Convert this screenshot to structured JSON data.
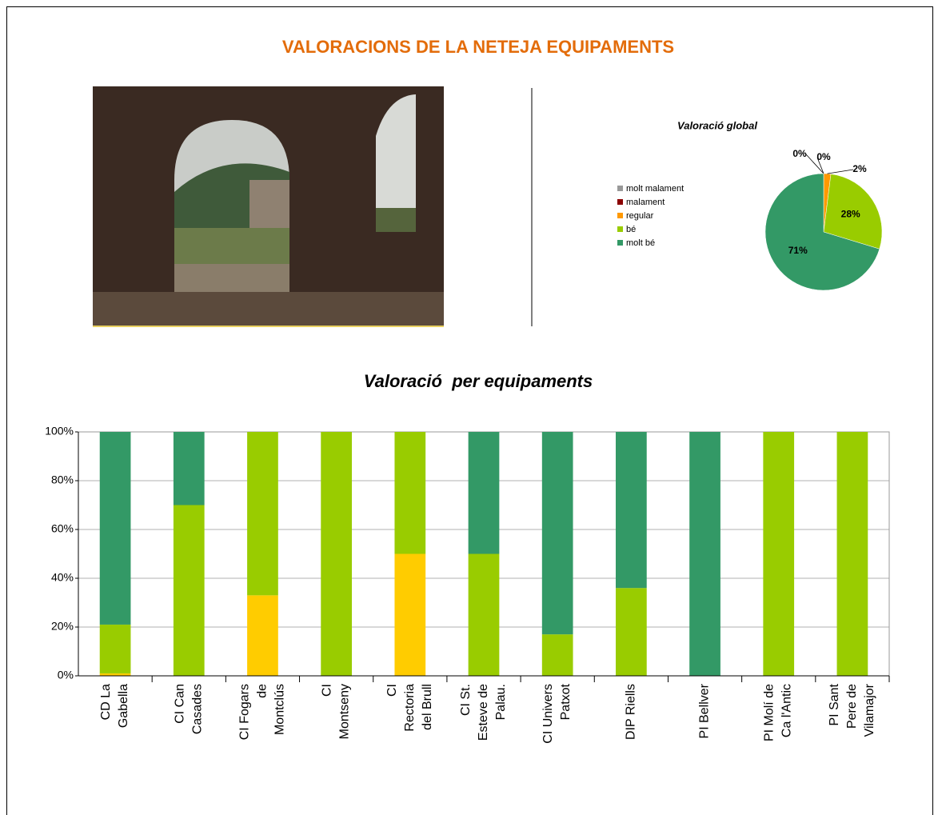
{
  "header": {
    "title": "VALORACIONS DE LA NETEJA EQUIPAMENTS"
  },
  "chart_data": [
    {
      "type": "pie",
      "title": "Valoració global",
      "categories": [
        "molt malament",
        "malament",
        "regular",
        "bé",
        "molt bé"
      ],
      "values": [
        0,
        0,
        2,
        28,
        71
      ],
      "value_labels": [
        "0%",
        "0%",
        "2%",
        "28%",
        "71%"
      ],
      "colors": [
        "#999999",
        "#8b0000",
        "#ff9900",
        "#99cc00",
        "#339966"
      ],
      "legend": "left"
    },
    {
      "type": "stacked_bar",
      "title": "Valoració  per equipaments",
      "categories": [
        "CD La Gabella",
        "CI Can Casades",
        "CI Fogars de Montclús",
        "CI Montseny",
        "CI Rectoria del Brull",
        "CI St. Esteve de Palau.",
        "CI Univers Patxot",
        "DIP Riells",
        "PI Bellver",
        "PI Molí de Ca l'Antic",
        "PI Sant Pere de Vilamajor"
      ],
      "series": [
        {
          "color": "#ffcc00",
          "values": [
            1,
            0,
            33,
            0,
            50,
            0,
            0,
            0,
            0,
            0,
            0
          ]
        },
        {
          "color": "#99cc00",
          "values": [
            20,
            70,
            67,
            100,
            50,
            50,
            17,
            36,
            0,
            100,
            100
          ]
        },
        {
          "color": "#339966",
          "values": [
            79,
            30,
            0,
            0,
            0,
            50,
            83,
            64,
            100,
            0,
            0
          ]
        }
      ],
      "ylim": [
        0,
        100
      ],
      "yticks": [
        {
          "value": 0,
          "label": "0%"
        },
        {
          "value": 20,
          "label": "20%"
        },
        {
          "value": 40,
          "label": "40%"
        },
        {
          "value": 60,
          "label": "60%"
        },
        {
          "value": 80,
          "label": "80%"
        },
        {
          "value": 100,
          "label": "100%"
        }
      ],
      "grid": true
    }
  ]
}
